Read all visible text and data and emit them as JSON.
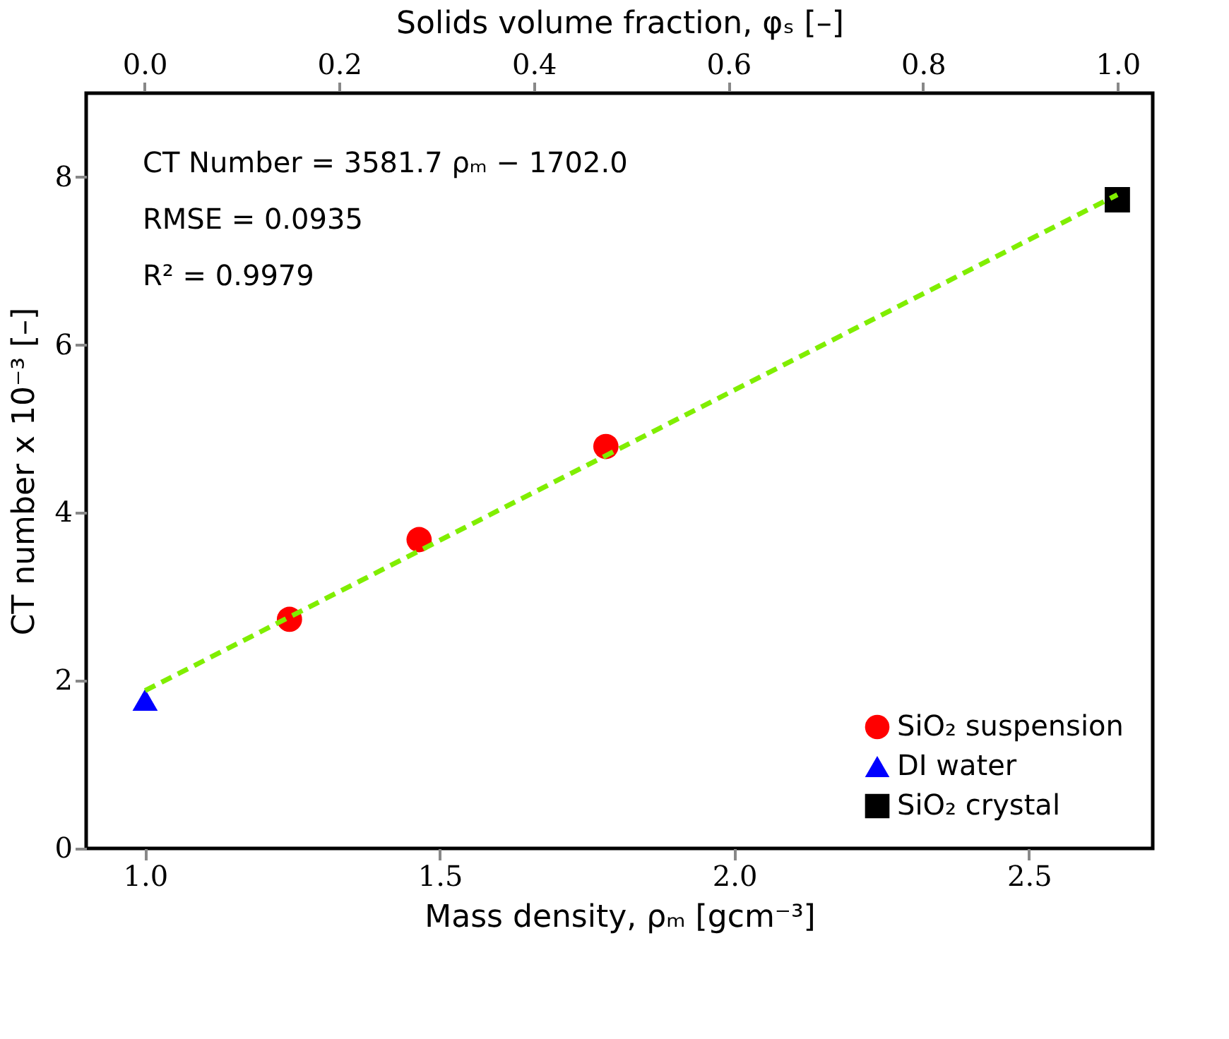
{
  "chart_data": {
    "type": "scatter",
    "xlabel": "Mass density, ρₘ [gcm⁻³]",
    "ylabel": "CT number x 10⁻³ [–]",
    "x2label": "Solids volume fraction, φₛ [–]",
    "xlim": [
      0.9,
      2.71
    ],
    "xticks": [
      {
        "value": 1.0,
        "label": "1.0"
      },
      {
        "value": 1.5,
        "label": "1.5"
      },
      {
        "value": 2.0,
        "label": "2.0"
      },
      {
        "value": 2.5,
        "label": "2.5"
      }
    ],
    "x2lim": [
      -0.06,
      1.036
    ],
    "x2ticks": [
      {
        "value": 0.0,
        "label": "0.0"
      },
      {
        "value": 0.2,
        "label": "0.2"
      },
      {
        "value": 0.4,
        "label": "0.4"
      },
      {
        "value": 0.6,
        "label": "0.6"
      },
      {
        "value": 0.8,
        "label": "0.8"
      },
      {
        "value": 1.0,
        "label": "1.0"
      }
    ],
    "ylim": [
      0,
      9.0
    ],
    "yticks": [
      {
        "value": 0,
        "label": "0"
      },
      {
        "value": 2,
        "label": "2"
      },
      {
        "value": 4,
        "label": "4"
      },
      {
        "value": 6,
        "label": "6"
      },
      {
        "value": 8,
        "label": "8"
      }
    ],
    "grid": false,
    "legend": "bottom right",
    "annotations": [
      "CT Number = 3581.7 ρₘ − 1702.0",
      "RMSE = 0.0935",
      "R² = 0.9979"
    ],
    "series": [
      {
        "name": "SiO₂ suspension",
        "type": "scatter",
        "marker": "circle",
        "color": "#ff0000",
        "x": [
          1.245,
          1.465,
          1.782
        ],
        "values": [
          2.73,
          3.68,
          4.79
        ]
      },
      {
        "name": "DI water",
        "type": "scatter",
        "marker": "triangle",
        "color": "#0000ff",
        "x": [
          1.0
        ],
        "values": [
          1.77
        ]
      },
      {
        "name": "SiO₂ crystal",
        "type": "scatter",
        "marker": "square",
        "color": "#000000",
        "x": [
          2.65
        ],
        "values": [
          7.73
        ]
      },
      {
        "type": "line",
        "line_style": "dashed",
        "marker": "none",
        "color": "#80ee00",
        "x": [
          1.0,
          2.65
        ],
        "values": [
          1.88,
          7.79
        ]
      }
    ]
  }
}
